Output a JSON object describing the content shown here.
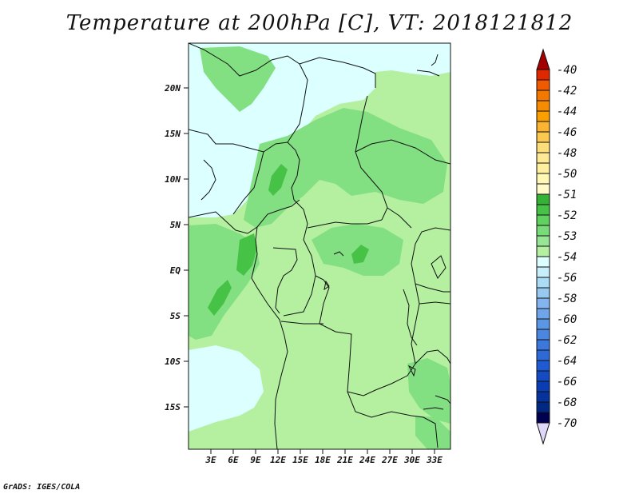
{
  "title": "Temperature at 200hPa [C], VT: 2018121812",
  "credit": "GrADS: IGES/COLA",
  "map": {
    "lat_labels": [
      "20N",
      "15N",
      "10N",
      "5N",
      "EQ",
      "5S",
      "10S",
      "15S"
    ],
    "lon_labels": [
      "3E",
      "6E",
      "9E",
      "12E",
      "15E",
      "18E",
      "21E",
      "24E",
      "27E",
      "30E",
      "33E"
    ]
  },
  "colorbar": {
    "labels": [
      "-40",
      "-42",
      "-44",
      "-46",
      "-48",
      "-50",
      "-51",
      "-52",
      "-53",
      "-54",
      "-56",
      "-58",
      "-60",
      "-62",
      "-64",
      "-66",
      "-68",
      "-70"
    ],
    "colors": [
      "#a50000",
      "#e02800",
      "#f05a00",
      "#f78c00",
      "#fbb432",
      "#fdde78",
      "#fff7b4",
      "#35b235",
      "#5fd25f",
      "#96e696",
      "#dcffff",
      "#aadcf5",
      "#82b4f0",
      "#5a96e6",
      "#3c78dc",
      "#1e5ad2",
      "#0a3cb4",
      "#002882",
      "#000050",
      "#e0d8f8"
    ],
    "fill_colors": {
      "light_cyan": "#dcffff",
      "pale_green": "#b4f0a0",
      "mid_green": "#82e082",
      "dark_green": "#46c346"
    }
  }
}
